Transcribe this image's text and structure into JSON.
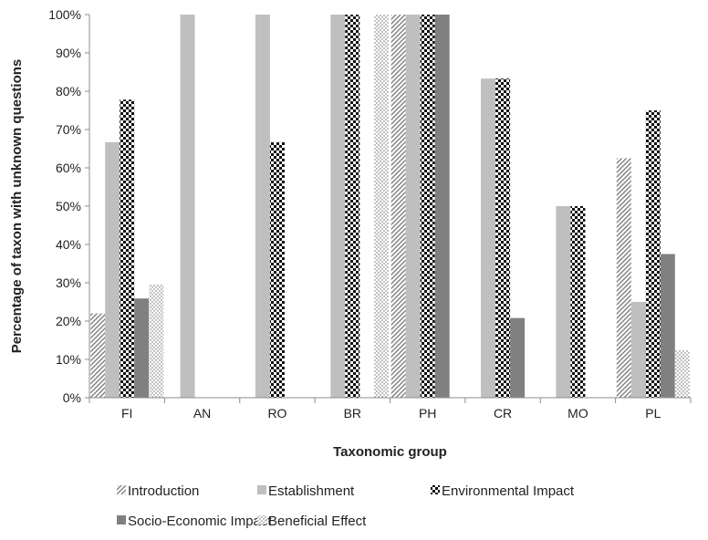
{
  "chart_data": {
    "type": "bar",
    "title": "",
    "xlabel": "Taxonomic group",
    "ylabel": "Percentage of taxon with unknown questions",
    "categories": [
      "FI",
      "AN",
      "RO",
      "BR",
      "PH",
      "CR",
      "MO",
      "PL"
    ],
    "ylim": [
      0,
      100
    ],
    "yticks": [
      0,
      10,
      20,
      30,
      40,
      50,
      60,
      70,
      80,
      90,
      100
    ],
    "ytick_labels": [
      "0%",
      "10%",
      "20%",
      "30%",
      "40%",
      "50%",
      "60%",
      "70%",
      "80%",
      "90%",
      "100%"
    ],
    "grid": false,
    "legend_position": "bottom",
    "series": [
      {
        "name": "Introduction",
        "pattern": "diagonal-hatch",
        "color": "#7f7f7f",
        "values": [
          22,
          0,
          0,
          0,
          100,
          0,
          0,
          62.5
        ]
      },
      {
        "name": "Establishment",
        "pattern": "solid",
        "color": "#bfbfbf",
        "values": [
          66.7,
          100,
          100,
          100,
          100,
          83.3,
          50,
          25
        ]
      },
      {
        "name": "Environmental Impact",
        "pattern": "checker",
        "color": "#111111",
        "values": [
          77.8,
          0,
          66.7,
          100,
          100,
          83.3,
          50,
          75
        ]
      },
      {
        "name": "Socio-Economic Impact",
        "pattern": "solid",
        "color": "#808080",
        "values": [
          25.9,
          0,
          0,
          0,
          100,
          20.8,
          0,
          37.5
        ]
      },
      {
        "name": "Beneficial Effect",
        "pattern": "dotted",
        "color": "#666666",
        "values": [
          29.6,
          0,
          0,
          100,
          0,
          0,
          0,
          12.5
        ]
      }
    ]
  }
}
